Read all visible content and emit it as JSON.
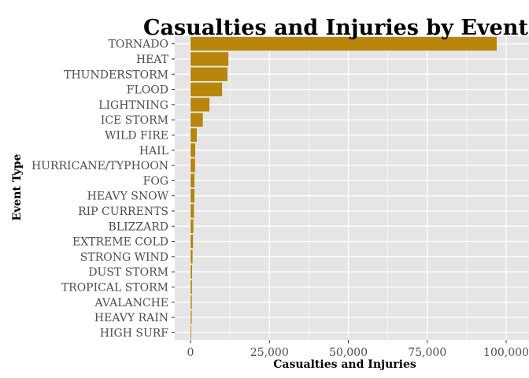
{
  "chart_data": {
    "type": "bar",
    "orientation": "horizontal",
    "title": "Casualties and Injuries by Event Type",
    "xlabel": "Casualties and Injuries",
    "ylabel": "Event Type",
    "xlim": [
      -4000,
      100500
    ],
    "x_ticks": [
      0,
      25000,
      50000,
      75000,
      100000
    ],
    "x_tick_labels": [
      "0",
      "25,000",
      "50,000",
      "75,000",
      "100,000"
    ],
    "categories": [
      "TORNADO",
      "HEAT",
      "THUNDERSTORM",
      "FLOOD",
      "LIGHTNING",
      "ICE STORM",
      "WILD FIRE",
      "HAIL",
      "HURRICANE/TYPHOON",
      "FOG",
      "HEAVY SNOW",
      "RIP CURRENTS",
      "BLIZZARD",
      "EXTREME COLD",
      "STRONG WIND",
      "DUST STORM",
      "TROPICAL STORM",
      "AVALANCHE",
      "HEAVY RAIN",
      "HIGH SURF"
    ],
    "values": [
      97000,
      12000,
      11700,
      10000,
      6000,
      3900,
      2000,
      1500,
      1450,
      1250,
      1250,
      1100,
      920,
      800,
      650,
      480,
      450,
      400,
      350,
      250
    ],
    "colors": {
      "bar": "#B8860B",
      "bar_outline": "#8B6508",
      "panel_background": "#E5E5E5",
      "grid": "#FFFFFF",
      "page_background": "#FFFFFF"
    },
    "grid": true,
    "legend": "none"
  }
}
